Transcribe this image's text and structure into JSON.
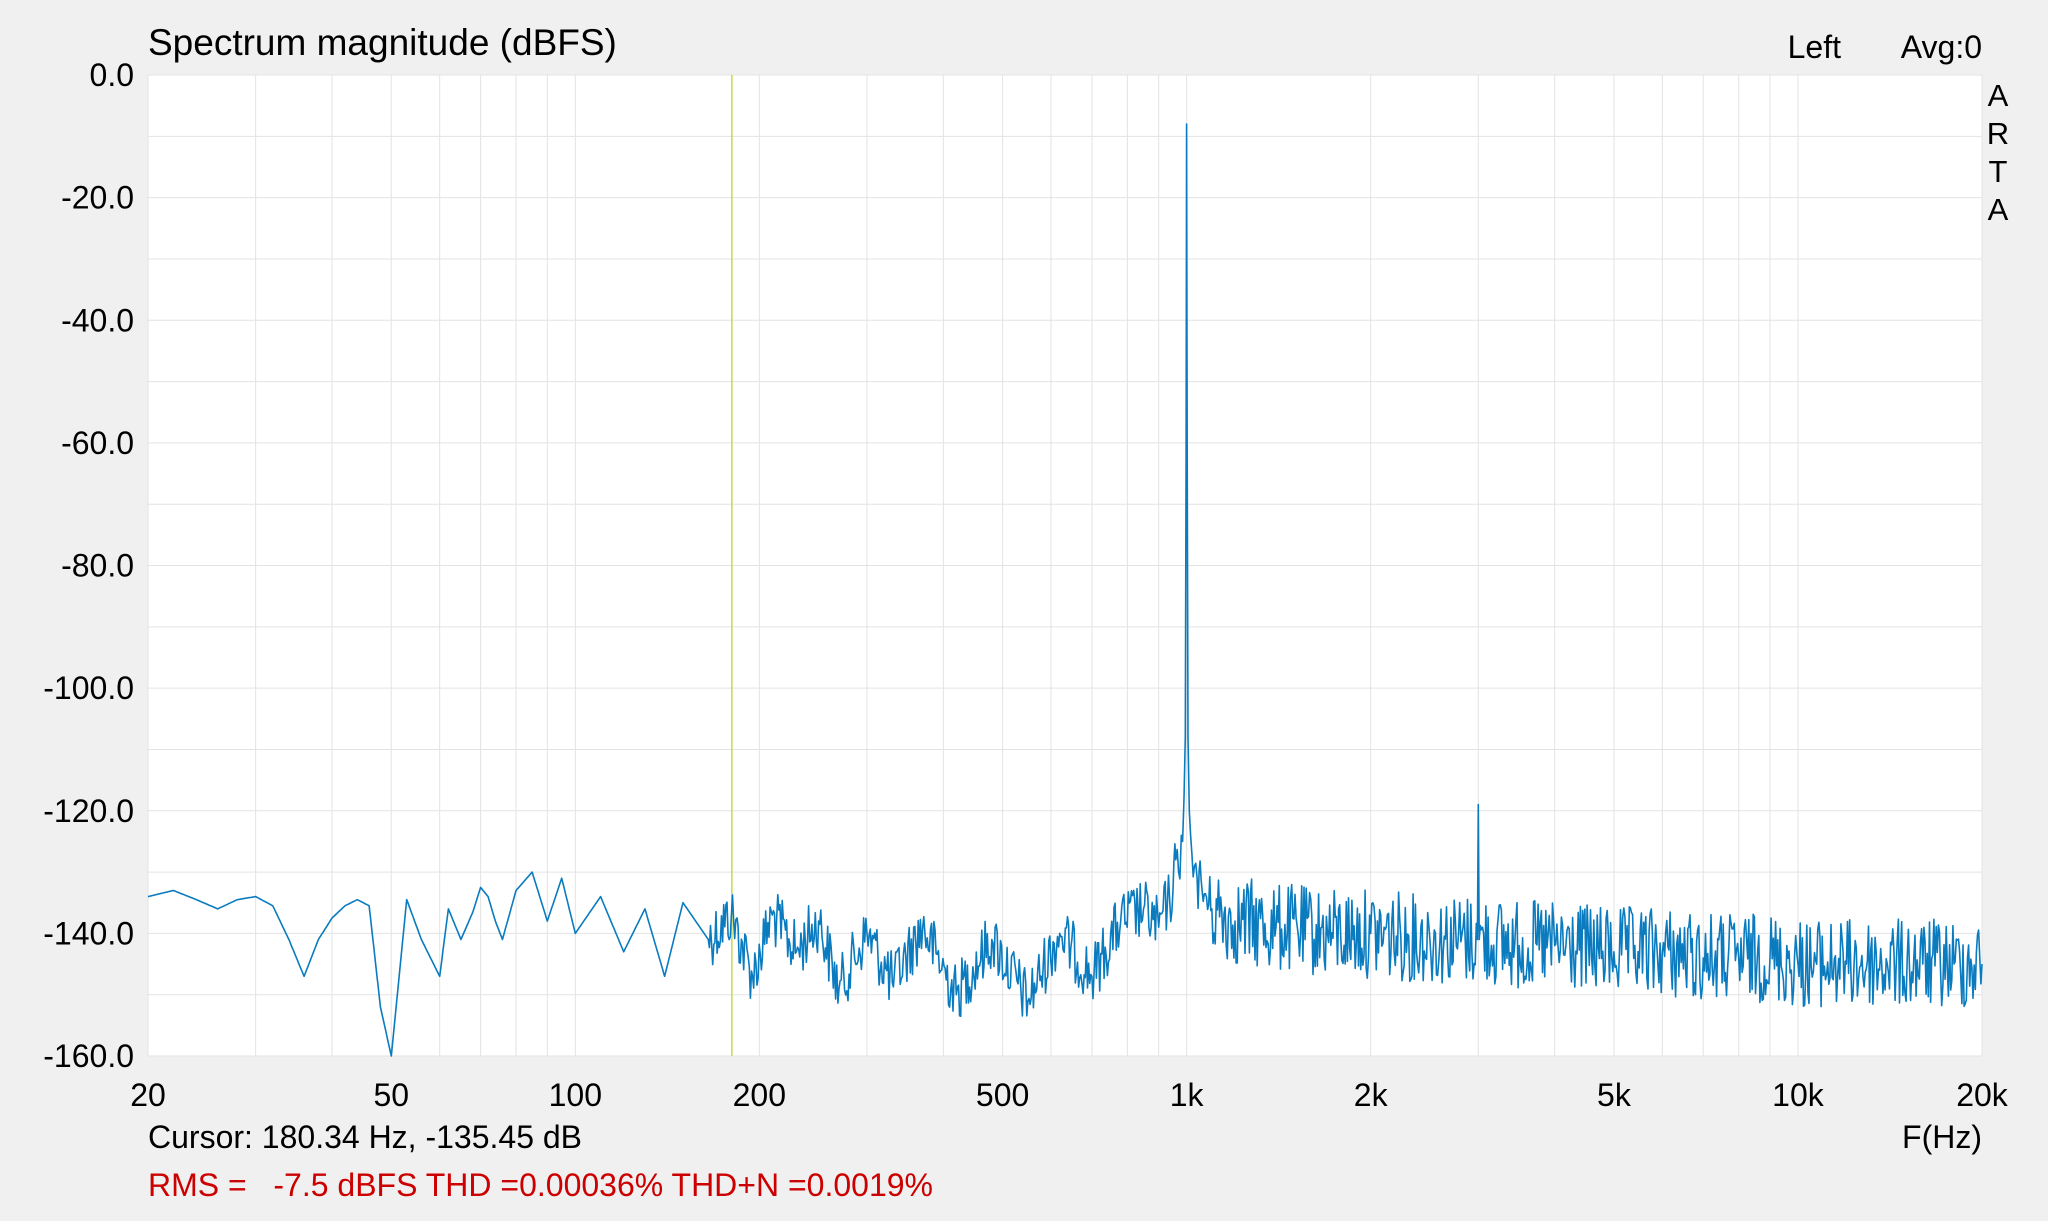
{
  "title": "Spectrum magnitude (dBFS)",
  "channel_label": "Left",
  "avg_label": "Avg:0",
  "brand_vertical": [
    "A",
    "R",
    "T",
    "A"
  ],
  "x_unit_label": "F(Hz)",
  "cursor_text": "Cursor: 180.34 Hz, -135.45 dB",
  "stats_text": "RMS =   -7.5 dBFS THD =0.00036% THD+N =0.0019%",
  "colors": {
    "background": "#f0f0f0",
    "plot_bg": "#ffffff",
    "grid": "#e3e3e3",
    "trace": "#0a7bbf",
    "cursor": "#c8d84a",
    "stats": "#cc0000",
    "text": "#000000"
  },
  "chart_data": {
    "type": "line",
    "x_scale": "log",
    "xlim": [
      20,
      20000
    ],
    "ylim": [
      -160,
      0
    ],
    "x_ticks": [
      {
        "value": 20,
        "label": "20"
      },
      {
        "value": 50,
        "label": "50"
      },
      {
        "value": 100,
        "label": "100"
      },
      {
        "value": 200,
        "label": "200"
      },
      {
        "value": 500,
        "label": "500"
      },
      {
        "value": 1000,
        "label": "1k"
      },
      {
        "value": 2000,
        "label": "2k"
      },
      {
        "value": 5000,
        "label": "5k"
      },
      {
        "value": 10000,
        "label": "10k"
      },
      {
        "value": 20000,
        "label": "20k"
      }
    ],
    "y_ticks": [
      {
        "value": 0,
        "label": "0.0"
      },
      {
        "value": -20,
        "label": "-20.0"
      },
      {
        "value": -40,
        "label": "-40.0"
      },
      {
        "value": -60,
        "label": "-60.0"
      },
      {
        "value": -80,
        "label": "-80.0"
      },
      {
        "value": -100,
        "label": "-100.0"
      },
      {
        "value": -120,
        "label": "-120.0"
      },
      {
        "value": -140,
        "label": "-140.0"
      },
      {
        "value": -160,
        "label": "-160.0"
      }
    ],
    "grid": true,
    "cursor_x": 180.34,
    "series": [
      {
        "x": [
          20,
          22,
          24,
          26,
          28,
          30,
          32,
          34,
          36,
          38,
          40,
          42,
          44,
          46,
          48,
          50,
          53,
          56,
          60,
          62,
          65,
          68,
          70,
          72,
          74,
          76,
          80,
          85,
          90,
          95,
          100,
          110,
          120,
          130,
          140,
          150,
          165,
          180,
          195,
          210,
          230,
          250,
          270,
          300,
          330,
          370,
          420,
          480,
          550,
          620,
          700,
          780,
          850,
          900,
          930,
          950,
          960,
          970,
          980,
          985,
          990,
          995,
          998,
          1000,
          1002,
          1005,
          1010,
          1015,
          1020,
          1030,
          1040,
          1060,
          1100,
          1200,
          1400,
          1700,
          2000,
          2500,
          2990,
          3000,
          3010,
          3500,
          4000,
          5000,
          6000,
          7000,
          8000,
          9000,
          10000,
          12000,
          14000,
          16000,
          18000,
          20000
        ],
        "y": [
          -134,
          -133,
          -134.5,
          -136,
          -134.5,
          -134,
          -135.5,
          -141,
          -147,
          -141,
          -137.5,
          -135.5,
          -134.5,
          -135.5,
          -152,
          -160,
          -134.5,
          -141,
          -147,
          -136,
          -141,
          -136.5,
          -132.5,
          -134,
          -138,
          -141,
          -133,
          -130,
          -138,
          -131,
          -140,
          -134,
          -143,
          -136,
          -147,
          -135,
          -141,
          -137,
          -147,
          -137,
          -143,
          -138,
          -149,
          -140,
          -148,
          -139,
          -150,
          -141,
          -151,
          -140,
          -147,
          -138,
          -136,
          -139,
          -135,
          -133,
          -128,
          -130,
          -124,
          -125,
          -118,
          -108,
          -62,
          -8,
          -62,
          -108,
          -120,
          -124,
          -127,
          -129,
          -131,
          -133,
          -136,
          -138,
          -139,
          -140,
          -140,
          -141,
          -141,
          -119,
          -141,
          -142,
          -142,
          -143,
          -143,
          -144,
          -144,
          -144,
          -145,
          -145,
          -145,
          -145,
          -145,
          -145
        ]
      }
    ]
  }
}
